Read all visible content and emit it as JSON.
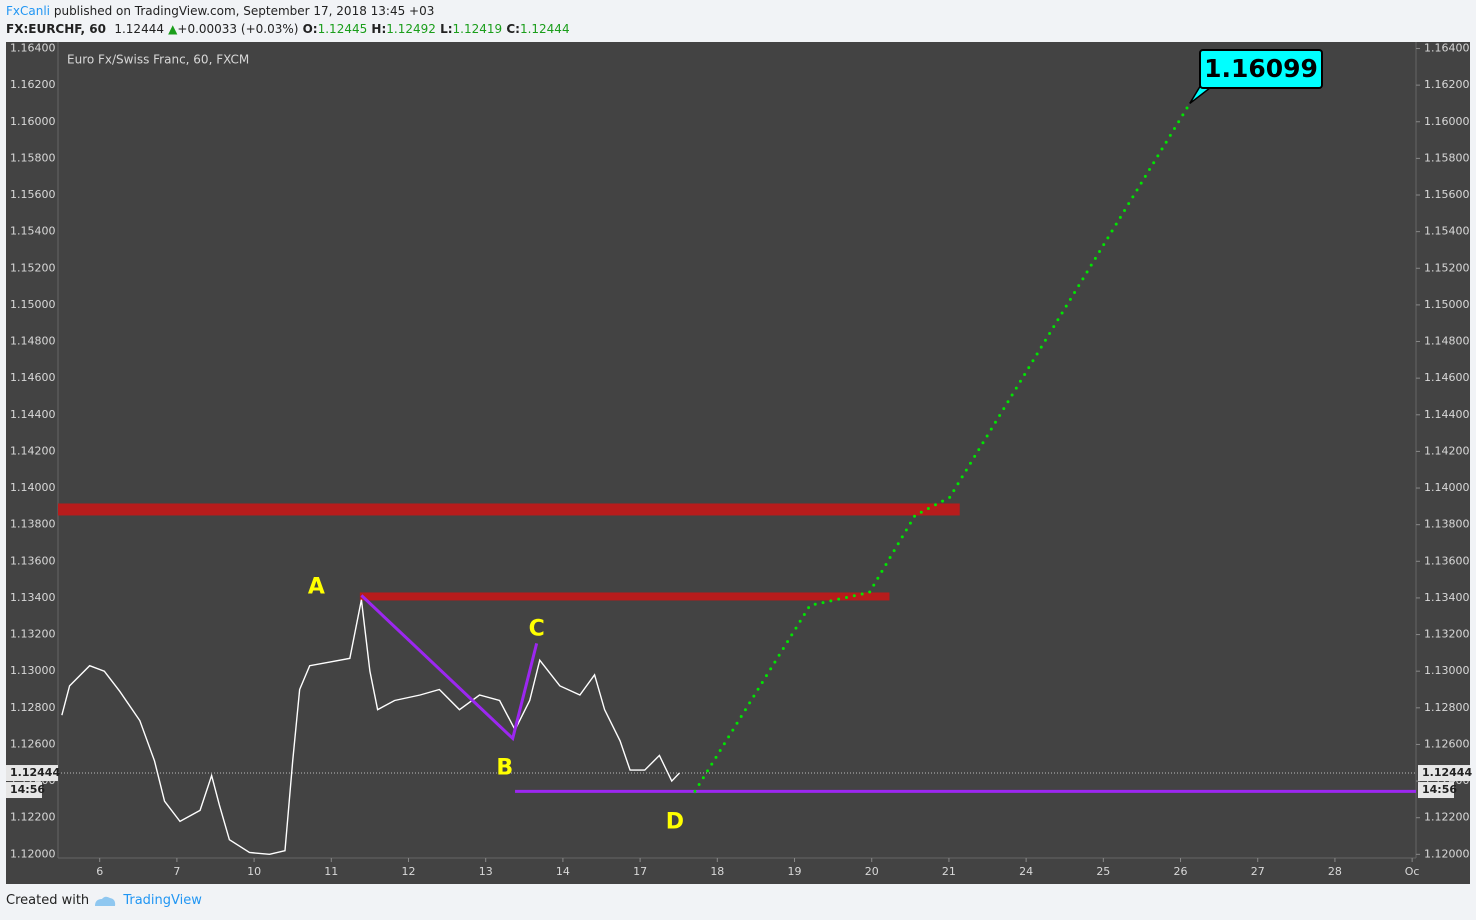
{
  "header": {
    "user": "FxCanli",
    "published": "published on TradingView.com, September 17, 2018 13:45 +03",
    "symbol": "FX:EURCHF, 60",
    "last": "1.12444",
    "arrow": "▲",
    "change": "+0.00033 (+0.03%)",
    "o_label": "O:",
    "o": "1.12445",
    "h_label": "H:",
    "h": "1.12492",
    "l_label": "L:",
    "l": "1.12419",
    "c_label": "C:",
    "c": "1.12444"
  },
  "footer": {
    "created": "Created with",
    "brand": "TradingView"
  },
  "chart_data": {
    "type": "line",
    "title": "Euro Fx/Swiss Franc, 60, FXCM",
    "color": "#ffffff",
    "x": [
      -0.49,
      -0.39,
      -0.13,
      0.06,
      0.26,
      0.52,
      0.71,
      0.84,
      1.04,
      1.3,
      1.45,
      1.55,
      1.68,
      1.94,
      2.2,
      2.4,
      2.5,
      2.59,
      2.72,
      2.98,
      3.24,
      3.39,
      3.5,
      3.6,
      3.82,
      4.15,
      4.4,
      4.66,
      4.92,
      5.18,
      5.38,
      5.57,
      5.7,
      5.96,
      6.22,
      6.41,
      6.54,
      6.74,
      6.87,
      7.06,
      7.25,
      7.41,
      7.51
    ],
    "values": [
      1.1276,
      1.1292,
      1.1303,
      1.13,
      1.1289,
      1.1273,
      1.1251,
      1.1229,
      1.1218,
      1.1224,
      1.1243,
      1.1227,
      1.1208,
      1.1201,
      1.12,
      1.1202,
      1.1251,
      1.129,
      1.1303,
      1.1305,
      1.1307,
      1.1339,
      1.13,
      1.1279,
      1.1284,
      1.1287,
      1.129,
      1.1279,
      1.1287,
      1.1284,
      1.1268,
      1.1284,
      1.1306,
      1.1292,
      1.1287,
      1.1298,
      1.1279,
      1.1262,
      1.1246,
      1.1246,
      1.1254,
      1.124,
      1.12444
    ],
    "xlim": [
      -0.54,
      17.05
    ],
    "ylim": [
      1.1198,
      1.1643
    ],
    "xticks": [
      {
        "value": 0,
        "label": "6"
      },
      {
        "value": 1,
        "label": "7"
      },
      {
        "value": 2,
        "label": "10"
      },
      {
        "value": 3,
        "label": "11"
      },
      {
        "value": 4,
        "label": "12"
      },
      {
        "value": 5,
        "label": "13"
      },
      {
        "value": 6,
        "label": "14"
      },
      {
        "value": 7,
        "label": "17"
      },
      {
        "value": 8,
        "label": "18"
      },
      {
        "value": 9,
        "label": "19"
      },
      {
        "value": 10,
        "label": "20"
      },
      {
        "value": 11,
        "label": "21"
      },
      {
        "value": 12,
        "label": "24"
      },
      {
        "value": 13,
        "label": "25"
      },
      {
        "value": 14,
        "label": "26"
      },
      {
        "value": 15,
        "label": "27"
      },
      {
        "value": 16,
        "label": "28"
      },
      {
        "value": 17,
        "label": "Oc"
      }
    ],
    "yticks": [
      {
        "value": 1.12,
        "label": "1.12000"
      },
      {
        "value": 1.122,
        "label": "1.12200"
      },
      {
        "value": 1.124,
        "label": "1.12400"
      },
      {
        "value": 1.126,
        "label": "1.12600"
      },
      {
        "value": 1.128,
        "label": "1.12800"
      },
      {
        "value": 1.13,
        "label": "1.13000"
      },
      {
        "value": 1.132,
        "label": "1.13200"
      },
      {
        "value": 1.134,
        "label": "1.13400"
      },
      {
        "value": 1.136,
        "label": "1.13600"
      },
      {
        "value": 1.138,
        "label": "1.13800"
      },
      {
        "value": 1.14,
        "label": "1.14000"
      },
      {
        "value": 1.142,
        "label": "1.14200"
      },
      {
        "value": 1.144,
        "label": "1.14400"
      },
      {
        "value": 1.146,
        "label": "1.14600"
      },
      {
        "value": 1.148,
        "label": "1.14800"
      },
      {
        "value": 1.15,
        "label": "1.15000"
      },
      {
        "value": 1.152,
        "label": "1.15200"
      },
      {
        "value": 1.154,
        "label": "1.15400"
      },
      {
        "value": 1.156,
        "label": "1.15600"
      },
      {
        "value": 1.158,
        "label": "1.15800"
      },
      {
        "value": 1.16,
        "label": "1.16000"
      },
      {
        "value": 1.162,
        "label": "1.16200"
      },
      {
        "value": 1.164,
        "label": "1.16400"
      }
    ],
    "last_price": 1.12444,
    "countdown": "14:56",
    "zones": [
      {
        "value": 1.13883,
        "x": [
          -0.54,
          11.14
        ],
        "color": "#b71c1c"
      },
      {
        "value": 1.13408,
        "x": [
          3.37,
          10.23
        ],
        "color": "#b71c1c"
      }
    ],
    "pattern": {
      "color": "#9c27f0",
      "labels": [
        "A",
        "B",
        "C",
        "D"
      ],
      "label_color": "#ffff00",
      "x": [
        3.39,
        5.35,
        5.66,
        7.45
      ],
      "values": [
        1.13414,
        1.12633,
        1.13152,
        1.12344
      ]
    },
    "d_level": {
      "value": 1.12344,
      "x": [
        5.38,
        17.05
      ]
    },
    "projection": {
      "color": "#00e600",
      "x": [
        7.71,
        9.2,
        9.97,
        10.56,
        11.01,
        14.12
      ],
      "values": [
        1.12344,
        1.13359,
        1.1343,
        1.1385,
        1.13949,
        1.161
      ]
    },
    "target": 1.16099
  }
}
